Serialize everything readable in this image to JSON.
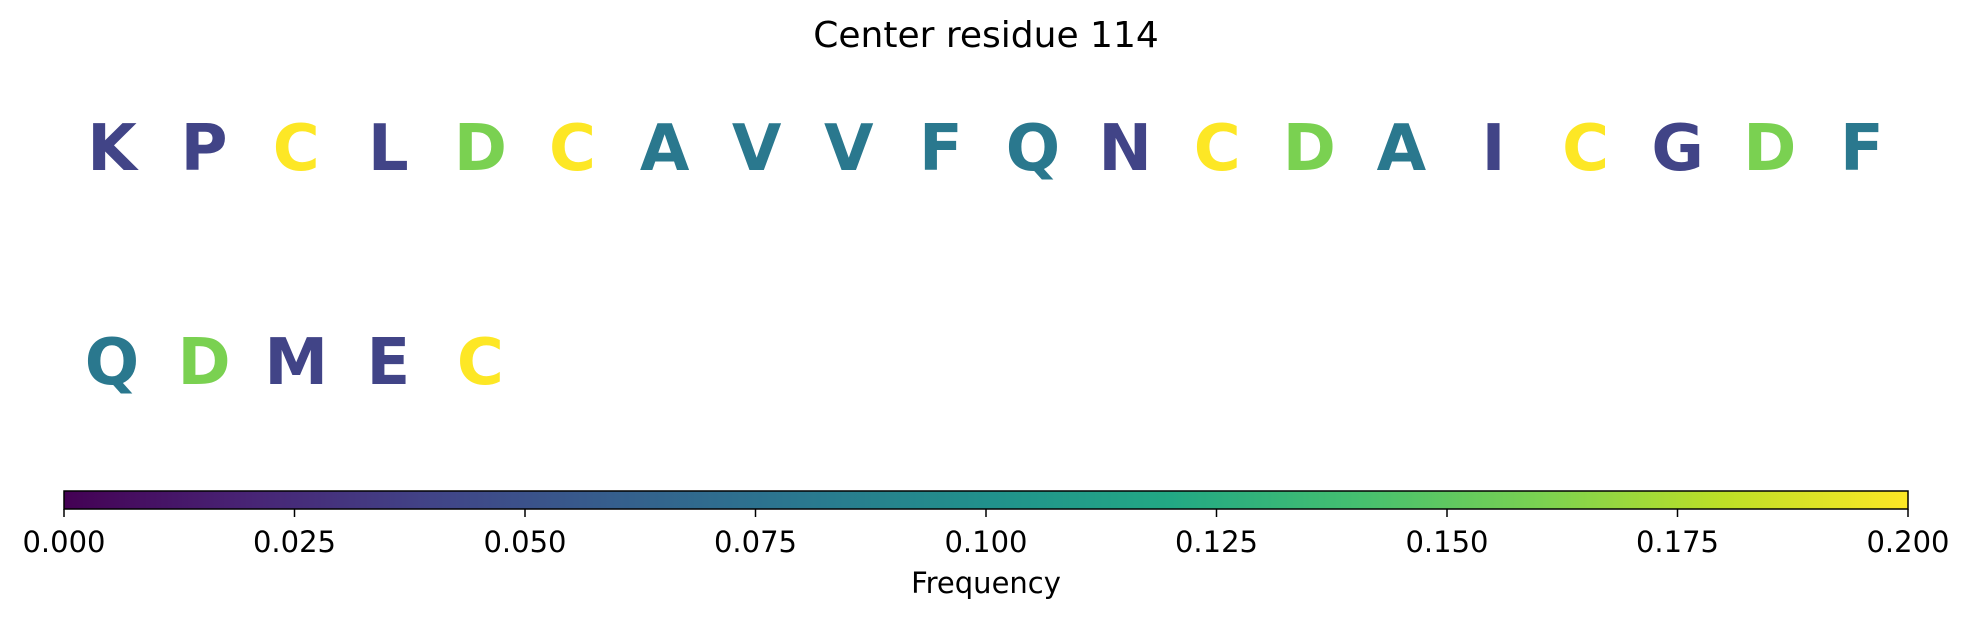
{
  "chart_data": {
    "type": "other",
    "title": "Center residue 114",
    "residues": [
      {
        "letter": "K",
        "frequency": 0.04
      },
      {
        "letter": "P",
        "frequency": 0.04
      },
      {
        "letter": "C",
        "frequency": 0.2
      },
      {
        "letter": "L",
        "frequency": 0.04
      },
      {
        "letter": "D",
        "frequency": 0.16
      },
      {
        "letter": "C",
        "frequency": 0.2
      },
      {
        "letter": "A",
        "frequency": 0.08
      },
      {
        "letter": "V",
        "frequency": 0.08
      },
      {
        "letter": "V",
        "frequency": 0.08
      },
      {
        "letter": "F",
        "frequency": 0.08
      },
      {
        "letter": "Q",
        "frequency": 0.08
      },
      {
        "letter": "N",
        "frequency": 0.04
      },
      {
        "letter": "C",
        "frequency": 0.2
      },
      {
        "letter": "D",
        "frequency": 0.16
      },
      {
        "letter": "A",
        "frequency": 0.08
      },
      {
        "letter": "I",
        "frequency": 0.04
      },
      {
        "letter": "C",
        "frequency": 0.2
      },
      {
        "letter": "G",
        "frequency": 0.04
      },
      {
        "letter": "D",
        "frequency": 0.16
      },
      {
        "letter": "F",
        "frequency": 0.08
      },
      {
        "letter": "Q",
        "frequency": 0.08
      },
      {
        "letter": "D",
        "frequency": 0.16
      },
      {
        "letter": "M",
        "frequency": 0.04
      },
      {
        "letter": "E",
        "frequency": 0.04
      },
      {
        "letter": "C",
        "frequency": 0.2
      }
    ],
    "colorbar": {
      "colormap": "viridis",
      "range": [
        0,
        0.2
      ],
      "ticks": [
        "0.000",
        "0.025",
        "0.050",
        "0.075",
        "0.100",
        "0.125",
        "0.150",
        "0.175",
        "0.200"
      ],
      "label": "Frequency",
      "orientation": "horizontal"
    }
  }
}
